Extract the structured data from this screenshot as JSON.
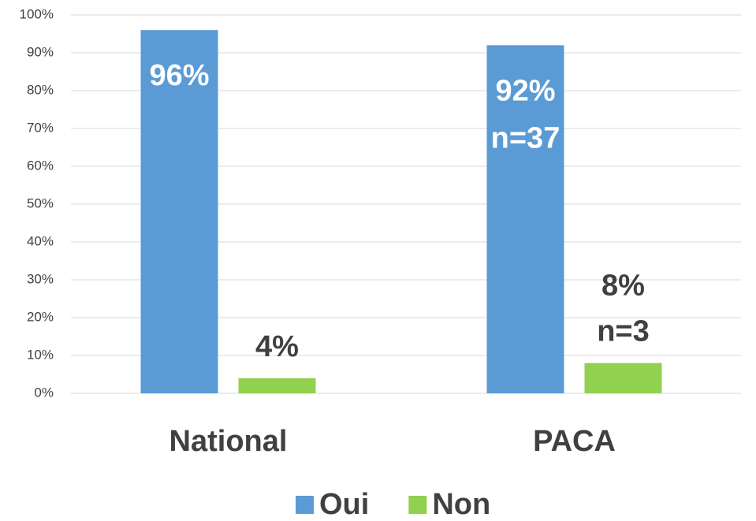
{
  "chart_data": {
    "type": "bar",
    "categories": [
      "National",
      "PACA"
    ],
    "series": [
      {
        "name": "Oui",
        "color": "#5b9bd5",
        "values": [
          96,
          92
        ],
        "value_labels": [
          [
            "96%"
          ],
          [
            "92%",
            "n=37"
          ]
        ]
      },
      {
        "name": "Non",
        "color": "#92d050",
        "values": [
          4,
          8
        ],
        "value_labels": [
          [
            "4%"
          ],
          [
            "8%",
            "n=3"
          ]
        ]
      }
    ],
    "ylim": [
      0,
      100
    ],
    "yticks": [
      {
        "value": 0,
        "label": "0%"
      },
      {
        "value": 10,
        "label": "10%"
      },
      {
        "value": 20,
        "label": "20%"
      },
      {
        "value": 30,
        "label": "30%"
      },
      {
        "value": 40,
        "label": "40%"
      },
      {
        "value": 50,
        "label": "50%"
      },
      {
        "value": 60,
        "label": "60%"
      },
      {
        "value": 70,
        "label": "70%"
      },
      {
        "value": 80,
        "label": "80%"
      },
      {
        "value": 90,
        "label": "90%"
      },
      {
        "value": 100,
        "label": "100%"
      }
    ],
    "grid": true,
    "legend": "bottom"
  }
}
